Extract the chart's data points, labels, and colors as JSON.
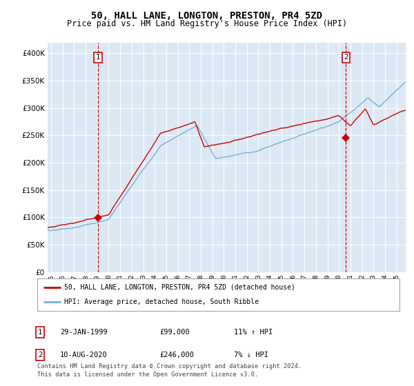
{
  "title": "50, HALL LANE, LONGTON, PRESTON, PR4 5ZD",
  "subtitle": "Price paid vs. HM Land Registry's House Price Index (HPI)",
  "title_fontsize": 10,
  "subtitle_fontsize": 8.5,
  "plot_bg_color": "#dce9f5",
  "red_line_color": "#cc0000",
  "blue_line_color": "#7aadd4",
  "sale1_date_num": 1999.08,
  "sale1_price": 99000,
  "sale2_date_num": 2020.61,
  "sale2_price": 246000,
  "ylim": [
    0,
    420000
  ],
  "xlim_start": 1994.7,
  "xlim_end": 2025.8,
  "yticks": [
    0,
    50000,
    100000,
    150000,
    200000,
    250000,
    300000,
    350000,
    400000
  ],
  "legend_line1": "50, HALL LANE, LONGTON, PRESTON, PR4 5ZD (detached house)",
  "legend_line2": "HPI: Average price, detached house, South Ribble",
  "footer": "Contains HM Land Registry data © Crown copyright and database right 2024.\nThis data is licensed under the Open Government Licence v3.0.",
  "xtick_years": [
    1995,
    1996,
    1997,
    1998,
    1999,
    2000,
    2001,
    2002,
    2003,
    2004,
    2005,
    2006,
    2007,
    2008,
    2009,
    2010,
    2011,
    2012,
    2013,
    2014,
    2015,
    2016,
    2017,
    2018,
    2019,
    2020,
    2021,
    2022,
    2023,
    2024,
    2025
  ]
}
